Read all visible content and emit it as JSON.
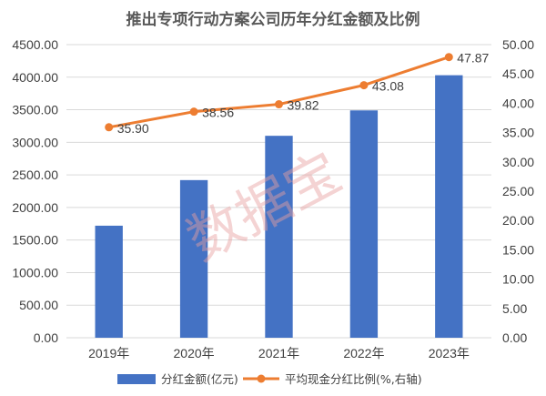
{
  "chart_data": {
    "type": "bar+line",
    "title": "推出专项行动方案公司历年分红金额及比例",
    "categories": [
      "2019年",
      "2020年",
      "2021年",
      "2022年",
      "2023年"
    ],
    "series": [
      {
        "name": "分红金额(亿元)",
        "type": "bar",
        "axis": "left",
        "color": "#4472c4",
        "values": [
          1720,
          2420,
          3100,
          3490,
          4030
        ]
      },
      {
        "name": "平均现金分红比例(%,右轴)",
        "type": "line",
        "axis": "right",
        "color": "#ed7d31",
        "values": [
          35.9,
          38.56,
          39.82,
          43.08,
          47.87
        ],
        "data_labels": [
          "35.90",
          "38.56",
          "39.82",
          "43.08",
          "47.87"
        ]
      }
    ],
    "left_axis": {
      "ylim": [
        0,
        4500
      ],
      "ticks": [
        "0.00",
        "500.00",
        "1000.00",
        "1500.00",
        "2000.00",
        "2500.00",
        "3000.00",
        "3500.00",
        "4000.00",
        "4500.00"
      ]
    },
    "right_axis": {
      "ylim": [
        0,
        50
      ],
      "ticks": [
        "0.00",
        "5.00",
        "10.00",
        "15.00",
        "20.00",
        "25.00",
        "30.00",
        "35.00",
        "40.00",
        "45.00",
        "50.00"
      ]
    },
    "grid": true,
    "legend": "bottom",
    "watermark": "数据宝"
  }
}
